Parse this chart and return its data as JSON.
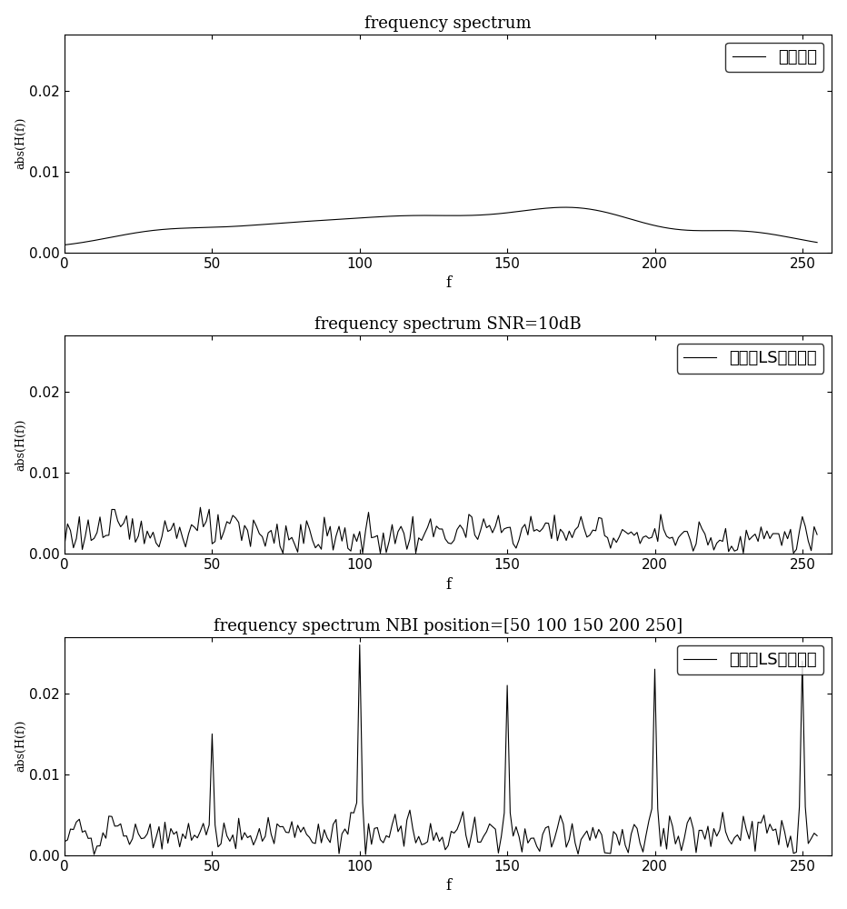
{
  "title1": "frequency spectrum",
  "title2": "frequency spectrum SNR=10dB",
  "title3": "frequency spectrum NBI position=[50 100 150 200 250]",
  "xlabel": "f",
  "ylabel": "abs(H(f))",
  "xlim": [
    0,
    260
  ],
  "ylim": [
    0,
    0.027
  ],
  "yticks": [
    0,
    0.01,
    0.02
  ],
  "xticks": [
    0,
    50,
    100,
    150,
    200,
    250
  ],
  "legend1": "完美信道",
  "legend2": "无窄带LS估计信道",
  "legend3": "加窄后LS估计信道",
  "line_color": "#000000",
  "bg_color": "#ffffff"
}
